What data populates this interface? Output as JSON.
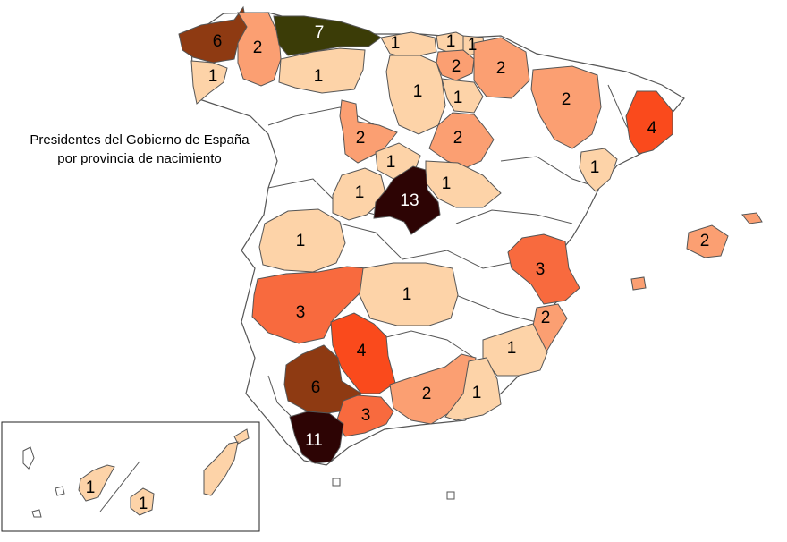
{
  "title": {
    "line1": "Presidentes del Gobierno de España",
    "line2": "por provincia de nacimiento"
  },
  "colors": {
    "empty": "#ffffff",
    "c1": "#fdd3a8",
    "c2": "#fb9f72",
    "c3": "#f86a3e",
    "c4": "#fa4a1c",
    "c6": "#8e3a12",
    "c7": "#3b3c07",
    "c11": "#2d0404",
    "c13": "#2d0404",
    "outline": "#555555"
  },
  "provinces": [
    {
      "id": "a-coruna",
      "value": 6,
      "label": "6"
    },
    {
      "id": "lugo",
      "value": 2,
      "label": "2"
    },
    {
      "id": "asturias",
      "value": 7,
      "label": "7"
    },
    {
      "id": "cantabria",
      "value": 1,
      "label": "1"
    },
    {
      "id": "vizcaya",
      "value": 1,
      "label": "1"
    },
    {
      "id": "guipuzcoa",
      "value": 1,
      "label": "1"
    },
    {
      "id": "alava",
      "value": 2,
      "label": "2"
    },
    {
      "id": "navarra",
      "value": 2,
      "label": "2"
    },
    {
      "id": "pontevedra",
      "value": 1,
      "label": "1"
    },
    {
      "id": "leon",
      "value": 1,
      "label": "1"
    },
    {
      "id": "burgos",
      "value": 1,
      "label": "1"
    },
    {
      "id": "la-rioja",
      "value": 1,
      "label": "1"
    },
    {
      "id": "huesca",
      "value": 2,
      "label": "2"
    },
    {
      "id": "barcelona",
      "value": 4,
      "label": "4"
    },
    {
      "id": "valladolid",
      "value": 2,
      "label": "2"
    },
    {
      "id": "soria",
      "value": 2,
      "label": "2"
    },
    {
      "id": "segovia",
      "value": 1,
      "label": "1"
    },
    {
      "id": "guadalajara",
      "value": 1,
      "label": "1"
    },
    {
      "id": "avila",
      "value": 1,
      "label": "1"
    },
    {
      "id": "madrid",
      "value": 13,
      "label": "13"
    },
    {
      "id": "tarragona",
      "value": 1,
      "label": "1"
    },
    {
      "id": "baleares",
      "value": 2,
      "label": "2"
    },
    {
      "id": "caceres",
      "value": 1,
      "label": "1"
    },
    {
      "id": "valencia",
      "value": 3,
      "label": "3"
    },
    {
      "id": "badajoz",
      "value": 3,
      "label": "3"
    },
    {
      "id": "ciudad-real",
      "value": 1,
      "label": "1"
    },
    {
      "id": "alicante",
      "value": 2,
      "label": "2"
    },
    {
      "id": "cordoba",
      "value": 4,
      "label": "4"
    },
    {
      "id": "murcia",
      "value": 1,
      "label": "1"
    },
    {
      "id": "sevilla",
      "value": 6,
      "label": "6"
    },
    {
      "id": "granada",
      "value": 2,
      "label": "2"
    },
    {
      "id": "almeria",
      "value": 1,
      "label": "1"
    },
    {
      "id": "malaga",
      "value": 3,
      "label": "3"
    },
    {
      "id": "cadiz",
      "value": 11,
      "label": "11"
    },
    {
      "id": "santa-cruz-de-tenerife",
      "value": 1,
      "label": "1"
    },
    {
      "id": "las-palmas",
      "value": 1,
      "label": "1"
    }
  ]
}
